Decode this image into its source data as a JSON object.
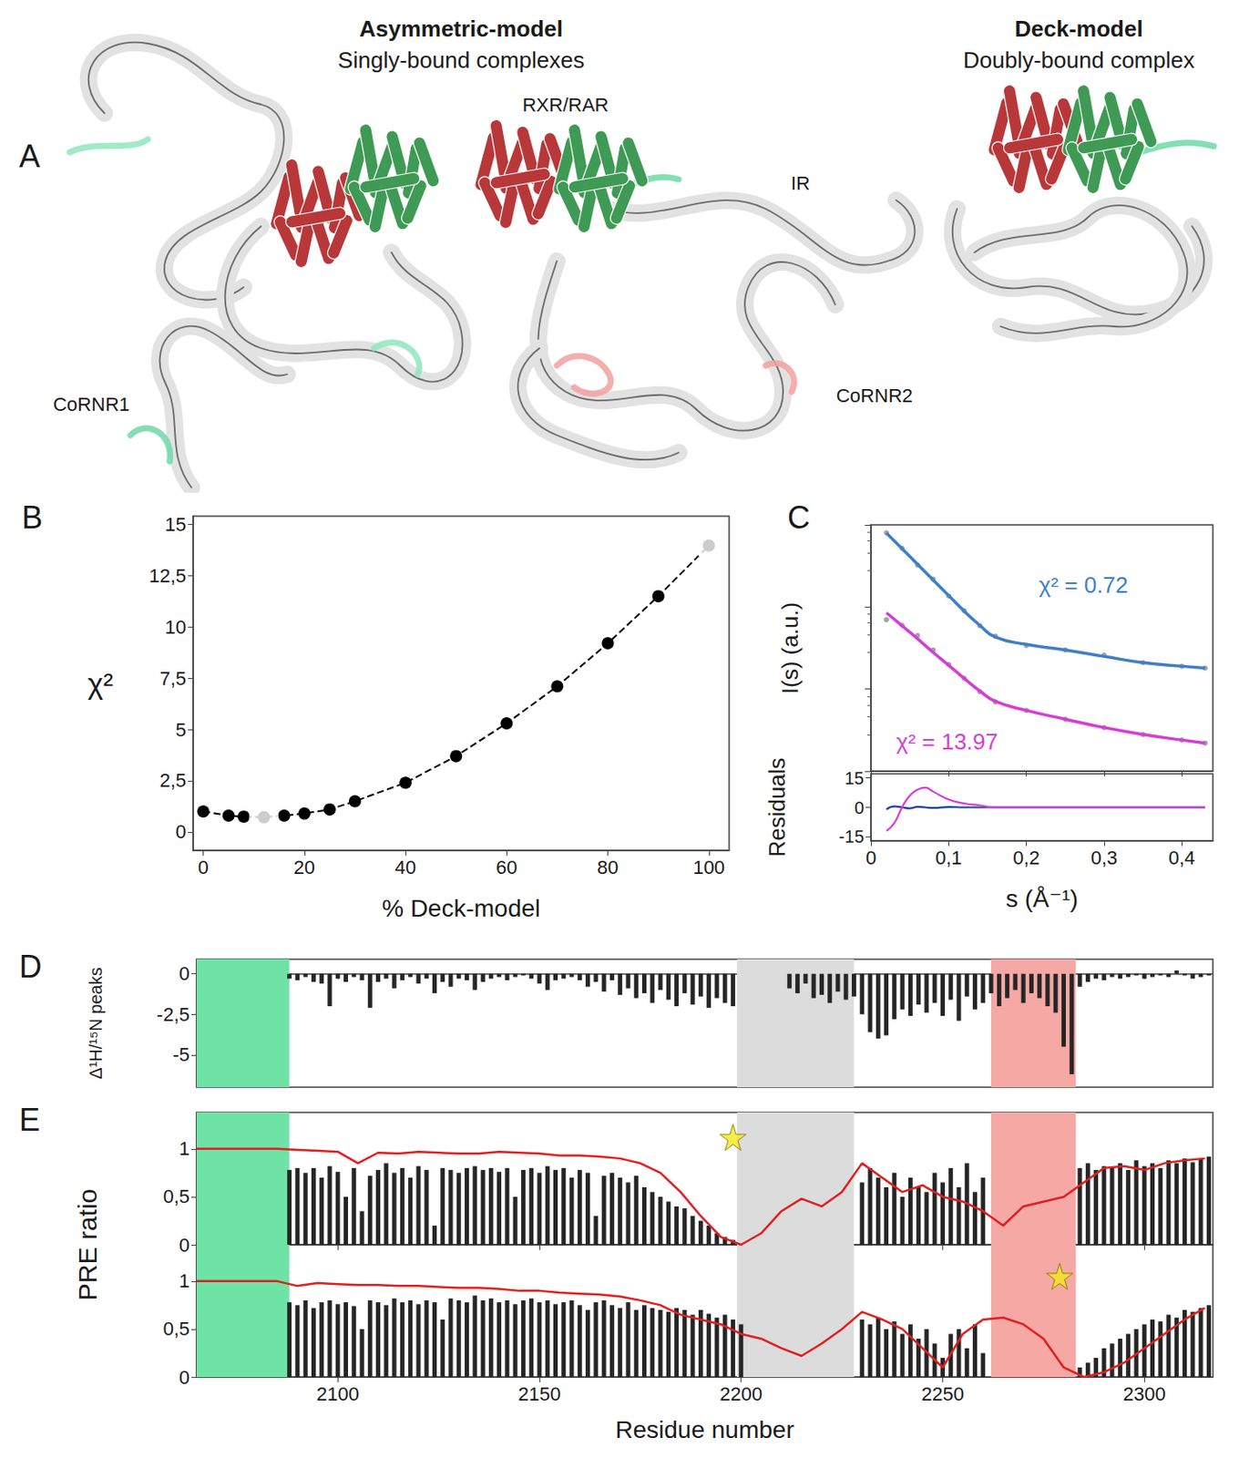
{
  "panel_a": {
    "letter": "A",
    "groups": [
      {
        "title": "Asymmetric-model",
        "subtitle": "Singly-bound complexes"
      },
      {
        "title": "Deck-model",
        "subtitle": "Doubly-bound complex"
      }
    ],
    "labels": [
      "RXR/RAR",
      "IR",
      "CoRNR1",
      "CoRNR2"
    ]
  },
  "chart_data": [
    {
      "letter": "B",
      "type": "line",
      "x": [
        0,
        5,
        8,
        12,
        16,
        20,
        25,
        30,
        40,
        50,
        60,
        70,
        80,
        90,
        100
      ],
      "values": [
        1.0,
        0.8,
        0.75,
        0.72,
        0.8,
        0.9,
        1.1,
        1.5,
        2.4,
        3.7,
        5.3,
        7.1,
        9.2,
        11.5,
        13.97
      ],
      "color": "#000000",
      "marker": "circle",
      "line_style": "dashed",
      "xlabel": "% Deck-model",
      "ylabel": "χ²",
      "xlim": [
        -2,
        104
      ],
      "ylim": [
        -0.9,
        15.4
      ],
      "xticks": [
        0,
        20,
        40,
        60,
        80,
        100
      ],
      "yticks": [
        0,
        {
          "value": 2.5,
          "label": "2,5"
        },
        5,
        {
          "value": 7.5,
          "label": "7,5"
        },
        10,
        {
          "value": 12.5,
          "label": "12,5"
        },
        15
      ],
      "highlight": [
        {
          "x": 12,
          "color": "#4a8fd8"
        },
        {
          "x": 100,
          "color": "#d23fd2"
        }
      ],
      "grid": false
    },
    {
      "letter": "C",
      "type": "line",
      "log": "y",
      "tick_labels": "x",
      "xlabel": "s (Å⁻¹)",
      "ylabel": "I(s) (a.u.)",
      "xlim": [
        0,
        0.44
      ],
      "xticks": [
        0,
        {
          "value": 0.1,
          "label": "0,1"
        },
        {
          "value": 0.2,
          "label": "0,2"
        },
        {
          "value": 0.3,
          "label": "0,3"
        },
        {
          "value": 0.4,
          "label": "0,4"
        }
      ],
      "ylim": [
        1,
        1000
      ],
      "x": [
        0.02,
        0.04,
        0.06,
        0.08,
        0.1,
        0.12,
        0.14,
        0.16,
        0.2,
        0.25,
        0.3,
        0.35,
        0.4,
        0.43
      ],
      "series": [
        {
          "type": "scatter",
          "color": "#8c8c8c",
          "marker": "circle",
          "values": [
            800,
            520,
            325,
            218,
            136,
            90,
            59,
            44,
            34,
            30,
            26,
            21,
            19,
            18
          ]
        },
        {
          "type": "scatter",
          "color": "#8c8c8c",
          "marker": "circle",
          "values": [
            70,
            60,
            45,
            30,
            20,
            13.5,
            9.3,
            7.0,
            5.5,
            4.3,
            3.4,
            2.8,
            2.4,
            2.2
          ]
        },
        {
          "type": "line",
          "color": "#3f7fc8",
          "values": [
            794,
            513,
            331,
            214,
            138,
            89,
            60,
            43,
            35,
            30,
            25,
            21,
            19,
            18
          ],
          "annotation": "χ² = 0.72"
        },
        {
          "type": "line",
          "color": "#d43fd4",
          "values": [
            85,
            59,
            41,
            28,
            19.5,
            13.5,
            9.5,
            7.1,
            5.5,
            4.3,
            3.4,
            2.8,
            2.4,
            2.2
          ],
          "annotation": "χ² = 13.97"
        }
      ],
      "residuals": {
        "ylabel": "Residuals",
        "ylim": [
          -17,
          17
        ],
        "yticks": [
          -15,
          0,
          15
        ],
        "x": [
          0.02,
          0.03,
          0.04,
          0.05,
          0.06,
          0.07,
          0.08,
          0.1,
          0.12,
          0.14,
          0.16,
          0.2,
          0.3,
          0.43
        ],
        "series": [
          {
            "color": "#1f3f9f",
            "values": [
              -1,
              0.5,
              0,
              -0.5,
              0.3,
              0,
              -0.3,
              0.2,
              0,
              0,
              0,
              0,
              0,
              0
            ]
          },
          {
            "color": "#d43fd4",
            "values": [
              -12,
              -8,
              0,
              6,
              9,
              10,
              8,
              4,
              2,
              1,
              0,
              0,
              0,
              0
            ]
          }
        ]
      },
      "grid": false
    },
    {
      "type": "bar",
      "xlabel": "Residue number",
      "xlim": [
        2065,
        2317
      ],
      "xticks": [
        2100,
        2150,
        2200,
        2250,
        2300
      ],
      "x": [
        2088,
        2090,
        2092,
        2094,
        2096,
        2098,
        2100,
        2102,
        2104,
        2106,
        2108,
        2110,
        2112,
        2114,
        2116,
        2118,
        2120,
        2122,
        2124,
        2126,
        2128,
        2130,
        2132,
        2134,
        2136,
        2138,
        2140,
        2142,
        2144,
        2146,
        2148,
        2150,
        2152,
        2154,
        2156,
        2158,
        2160,
        2162,
        2164,
        2166,
        2168,
        2170,
        2172,
        2174,
        2176,
        2178,
        2180,
        2182,
        2184,
        2186,
        2188,
        2190,
        2192,
        2194,
        2196,
        2198,
        2200,
        2202,
        2204,
        2206,
        2208,
        2210,
        2212,
        2214,
        2216,
        2218,
        2220,
        2222,
        2224,
        2226,
        2228,
        2230,
        2232,
        2234,
        2236,
        2238,
        2240,
        2242,
        2244,
        2246,
        2248,
        2250,
        2252,
        2254,
        2256,
        2258,
        2260,
        2262,
        2264,
        2266,
        2268,
        2270,
        2272,
        2274,
        2276,
        2278,
        2280,
        2282,
        2284,
        2286,
        2288,
        2290,
        2292,
        2294,
        2296,
        2298,
        2300,
        2302,
        2304,
        2306,
        2308,
        2310,
        2312,
        2314,
        2316
      ],
      "line_x": [
        2065,
        2070,
        2075,
        2080,
        2085,
        2090,
        2095,
        2100,
        2105,
        2110,
        2115,
        2120,
        2125,
        2130,
        2135,
        2140,
        2145,
        2150,
        2155,
        2160,
        2165,
        2170,
        2175,
        2180,
        2185,
        2190,
        2195,
        2200,
        2205,
        2210,
        2215,
        2220,
        2225,
        2230,
        2235,
        2240,
        2245,
        2250,
        2255,
        2260,
        2265,
        2270,
        2275,
        2280,
        2285,
        2290,
        2295,
        2300,
        2305,
        2310,
        2315
      ],
      "regions": [
        {
          "from": 2065,
          "to": 2088,
          "color": "#6fe3a6"
        },
        {
          "from": 2199,
          "to": 2228,
          "color": "#dcdcdc"
        },
        {
          "from": 2262,
          "to": 2283,
          "color": "#f6a8a4"
        }
      ],
      "panels": [
        {
          "letter": "D",
          "ylabel": "Δ¹H/¹⁵N peaks",
          "ylim": [
            -7,
            0.9
          ],
          "yticks": [
            0,
            {
              "value": -2.5,
              "label": "-2,5"
            },
            -5
          ],
          "color": "#262626",
          "rows": [
            {
              "values": [
                -0.3,
                -0.4,
                -0.2,
                -0.5,
                -0.6,
                -2.0,
                -0.3,
                -0.5,
                -0.2,
                -0.4,
                -2.1,
                -0.5,
                -0.3,
                -0.9,
                -0.4,
                -0.2,
                -0.6,
                -0.3,
                -1.2,
                -0.5,
                -0.8,
                -0.3,
                -0.4,
                -1.0,
                -0.5,
                -0.3,
                -0.2,
                -0.4,
                -0.2,
                -0.1,
                -0.3,
                -0.6,
                -1.0,
                -0.4,
                -0.3,
                -0.2,
                -0.4,
                -0.8,
                -0.5,
                -1.1,
                -0.4,
                -1.3,
                -0.9,
                -1.5,
                -1.2,
                -1.8,
                -1.0,
                -1.6,
                -2.0,
                -1.2,
                -1.9,
                -1.4,
                -2.1,
                -1.5,
                -1.8,
                -2.0,
                null,
                null,
                null,
                null,
                null,
                null,
                -0.9,
                -1.2,
                -0.6,
                -1.5,
                -1.3,
                -1.8,
                -1.1,
                -1.6,
                -1.4,
                -2.5,
                -3.6,
                -4.0,
                -3.8,
                -2.8,
                -2.2,
                -2.6,
                -1.9,
                -2.4,
                -1.8,
                -2.6,
                -1.6,
                -2.9,
                -1.4,
                -2.2,
                -1.8,
                -1.2,
                -2.0,
                -1.5,
                -1.0,
                -1.8,
                -1.2,
                -1.5,
                -2.0,
                -2.4,
                -4.5,
                -6.2,
                -0.8,
                -0.5,
                -0.3,
                -0.4,
                -0.2,
                -0.3,
                -0.2,
                -0.1,
                -0.3,
                -0.2,
                -0.1,
                -0.2,
                0.2,
                -0.1,
                -0.3,
                -0.2,
                -0.1
              ]
            }
          ]
        },
        {
          "letter": "E",
          "ylabel": "PRE ratio",
          "ylim": [
            0,
            1.38
          ],
          "yticks": [
            0,
            {
              "value": 0.5,
              "label": "0,5"
            },
            1
          ],
          "color": "#262626",
          "rows": [
            {
              "values": [
                0.78,
                0.8,
                0.75,
                0.8,
                0.7,
                0.82,
                0.76,
                0.5,
                0.8,
                0.35,
                0.72,
                0.78,
                0.85,
                0.75,
                0.8,
                0.7,
                0.82,
                0.78,
                0.2,
                0.8,
                0.78,
                0.75,
                0.8,
                0.82,
                0.78,
                0.8,
                0.76,
                0.8,
                0.5,
                0.78,
                0.8,
                0.75,
                0.82,
                0.78,
                0.8,
                0.7,
                0.78,
                0.75,
                0.3,
                0.72,
                0.75,
                0.7,
                0.65,
                0.72,
                0.6,
                0.55,
                0.5,
                0.45,
                0.4,
                0.38,
                0.3,
                0.25,
                0.2,
                0.12,
                0.08,
                0.05,
                null,
                null,
                null,
                null,
                null,
                null,
                null,
                null,
                null,
                null,
                null,
                null,
                null,
                null,
                null,
                0.65,
                0.8,
                0.7,
                0.6,
                0.75,
                0.5,
                0.7,
                0.6,
                0.55,
                0.75,
                0.65,
                0.8,
                0.6,
                0.85,
                0.55,
                0.7,
                null,
                null,
                null,
                null,
                null,
                null,
                null,
                null,
                null,
                null,
                null,
                0.8,
                0.85,
                0.78,
                0.82,
                0.8,
                0.85,
                0.78,
                0.88,
                0.82,
                0.85,
                0.8,
                0.88,
                0.85,
                0.9,
                0.86,
                0.9,
                0.92
              ],
              "line": {
                "color": "#e02020",
                "values": [
                  1,
                  1,
                  1,
                  1,
                  1,
                  0.99,
                  0.98,
                  0.97,
                  0.85,
                  0.96,
                  0.95,
                  0.97,
                  0.96,
                  0.95,
                  0.95,
                  0.97,
                  0.96,
                  0.95,
                  0.93,
                  0.93,
                  0.92,
                  0.9,
                  0.85,
                  0.75,
                  0.55,
                  0.3,
                  0.08,
                  0.0,
                  0.12,
                  0.35,
                  0.48,
                  0.4,
                  0.55,
                  0.85,
                  0.7,
                  0.55,
                  0.62,
                  0.5,
                  0.45,
                  0.35,
                  0.2,
                  0.4,
                  0.45,
                  0.5,
                  0.65,
                  0.8,
                  0.82,
                  0.78,
                  0.85,
                  0.88,
                  0.9
                ]
              },
              "spin_label": {
                "x": 2198,
                "y": 1.12,
                "marker": "star",
                "color": "#f4e81c"
              }
            },
            {
              "values": [
                0.78,
                0.75,
                0.8,
                0.72,
                0.78,
                0.8,
                0.76,
                0.78,
                0.74,
                0.5,
                0.8,
                0.78,
                0.75,
                0.82,
                0.78,
                0.8,
                0.76,
                0.8,
                0.78,
                0.6,
                0.82,
                0.8,
                0.78,
                0.85,
                0.8,
                0.82,
                0.78,
                0.8,
                0.76,
                0.8,
                0.82,
                0.78,
                0.8,
                0.76,
                0.78,
                0.8,
                0.75,
                0.7,
                0.78,
                0.8,
                0.75,
                0.72,
                0.78,
                0.7,
                0.75,
                0.72,
                0.7,
                0.68,
                0.72,
                0.7,
                0.65,
                0.7,
                0.66,
                0.62,
                0.65,
                0.6,
                0.55,
                null,
                null,
                null,
                null,
                null,
                null,
                null,
                null,
                null,
                null,
                null,
                null,
                null,
                null,
                0.6,
                0.55,
                0.62,
                0.5,
                0.58,
                0.45,
                0.55,
                0.4,
                0.5,
                0.35,
                0.2,
                0.45,
                0.5,
                0.3,
                0.55,
                0.25,
                null,
                null,
                null,
                null,
                null,
                null,
                null,
                null,
                null,
                null,
                null,
                0.1,
                0.15,
                0.2,
                0.3,
                0.35,
                0.4,
                0.45,
                0.5,
                0.55,
                0.6,
                0.58,
                0.65,
                0.62,
                0.7,
                0.68,
                0.72,
                0.75
              ],
              "line": {
                "color": "#e02020",
                "values": [
                  1,
                  1,
                  1,
                  1,
                  1,
                  0.95,
                  0.98,
                  0.97,
                  0.96,
                  0.96,
                  0.95,
                  0.95,
                  0.94,
                  0.93,
                  0.93,
                  0.92,
                  0.9,
                  0.9,
                  0.88,
                  0.87,
                  0.86,
                  0.84,
                  0.8,
                  0.75,
                  0.65,
                  0.6,
                  0.55,
                  0.45,
                  0.4,
                  0.3,
                  0.22,
                  0.35,
                  0.5,
                  0.68,
                  0.6,
                  0.5,
                  0.3,
                  0.1,
                  0.45,
                  0.6,
                  0.62,
                  0.55,
                  0.4,
                  0.1,
                  0.0,
                  0.05,
                  0.15,
                  0.3,
                  0.45,
                  0.6,
                  0.72
                ]
              },
              "spin_label": {
                "x": 2279,
                "y": 1.05,
                "marker": "star",
                "color": "#f4e81c"
              }
            }
          ]
        }
      ],
      "grid": false
    }
  ]
}
